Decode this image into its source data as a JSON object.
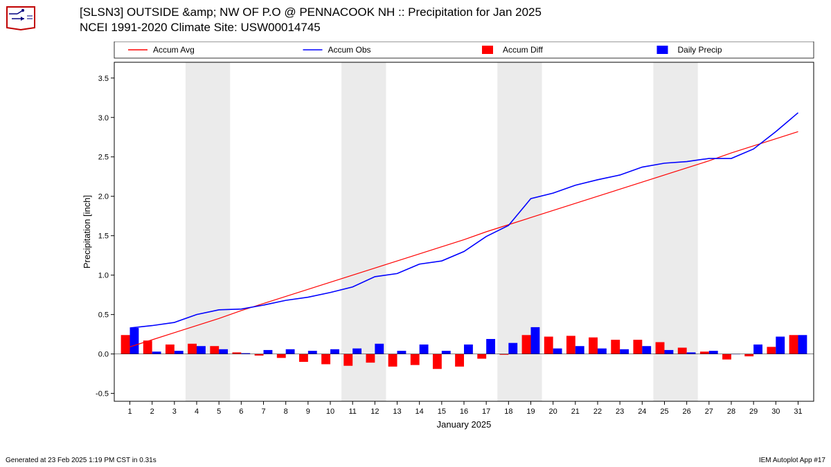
{
  "title": {
    "line1": "[SLSN3] OUTSIDE &amp; NW OF P.O @ PENNACOOK  NH :: Precipitation for Jan 2025",
    "line2": "NCEI 1991-2020 Climate Site: USW00014745"
  },
  "footer": {
    "left": "Generated at 23 Feb 2025 1:19 PM CST in 0.31s",
    "right": "IEM Autoplot App #17"
  },
  "legend": {
    "items": [
      {
        "label": "Accum Avg",
        "color": "#ff0000",
        "type": "line"
      },
      {
        "label": "Accum Obs",
        "color": "#0000ff",
        "type": "line"
      },
      {
        "label": "Accum Diff",
        "color": "#ff0000",
        "type": "bar"
      },
      {
        "label": "Daily Precip",
        "color": "#0000ff",
        "type": "bar"
      }
    ]
  },
  "chart": {
    "type": "line-bar-combo",
    "xlabel": "January 2025",
    "ylabel": "Precipitation [inch]",
    "xlabel_fontsize": 13,
    "ylabel_fontsize": 13,
    "tick_fontsize": 11,
    "background_color": "#ffffff",
    "weekend_band_color": "#ebebeb",
    "grid_color": "none",
    "axis_color": "#000000",
    "days": [
      1,
      2,
      3,
      4,
      5,
      6,
      7,
      8,
      9,
      10,
      11,
      12,
      13,
      14,
      15,
      16,
      17,
      18,
      19,
      20,
      21,
      22,
      23,
      24,
      25,
      26,
      27,
      28,
      29,
      30,
      31
    ],
    "weekend_bands": [
      [
        3.5,
        5.5
      ],
      [
        10.5,
        12.5
      ],
      [
        17.5,
        19.5
      ],
      [
        24.5,
        26.5
      ]
    ],
    "ylim": [
      -0.6,
      3.7
    ],
    "yticks": [
      -0.5,
      0.0,
      0.5,
      1.0,
      1.5,
      2.0,
      2.5,
      3.0,
      3.5
    ],
    "xlim": [
      0.3,
      31.7
    ],
    "accum_avg": {
      "color": "#ff0000",
      "width": 1.2,
      "values": [
        0.09,
        0.18,
        0.27,
        0.36,
        0.45,
        0.55,
        0.64,
        0.73,
        0.82,
        0.91,
        1.0,
        1.09,
        1.18,
        1.27,
        1.36,
        1.45,
        1.55,
        1.64,
        1.73,
        1.82,
        1.91,
        2.0,
        2.09,
        2.18,
        2.27,
        2.36,
        2.45,
        2.55,
        2.64,
        2.73,
        2.82
      ]
    },
    "accum_obs": {
      "color": "#0000ff",
      "width": 1.6,
      "values": [
        0.33,
        0.36,
        0.4,
        0.5,
        0.56,
        0.57,
        0.62,
        0.68,
        0.72,
        0.78,
        0.85,
        0.98,
        1.02,
        1.14,
        1.18,
        1.3,
        1.49,
        1.63,
        1.97,
        2.04,
        2.14,
        2.21,
        2.27,
        2.37,
        2.42,
        2.44,
        2.48,
        2.48,
        2.6,
        2.82,
        3.06
      ]
    },
    "accum_diff": {
      "color": "#ff0000",
      "bar_width": 0.4,
      "values": [
        0.24,
        0.17,
        0.12,
        0.13,
        0.1,
        0.02,
        -0.02,
        -0.05,
        -0.1,
        -0.13,
        -0.15,
        -0.11,
        -0.16,
        -0.14,
        -0.19,
        -0.16,
        -0.06,
        -0.01,
        0.24,
        0.22,
        0.23,
        0.21,
        0.18,
        0.18,
        0.15,
        0.08,
        0.03,
        -0.07,
        -0.03,
        0.09,
        0.24
      ]
    },
    "daily_precip": {
      "color": "#0000ff",
      "bar_width": 0.4,
      "values": [
        0.33,
        0.03,
        0.04,
        0.1,
        0.06,
        0.01,
        0.05,
        0.06,
        0.04,
        0.06,
        0.07,
        0.13,
        0.04,
        0.12,
        0.04,
        0.12,
        0.19,
        0.14,
        0.34,
        0.07,
        0.1,
        0.07,
        0.06,
        0.1,
        0.05,
        0.02,
        0.04,
        0.0,
        0.12,
        0.22,
        0.24
      ]
    }
  }
}
